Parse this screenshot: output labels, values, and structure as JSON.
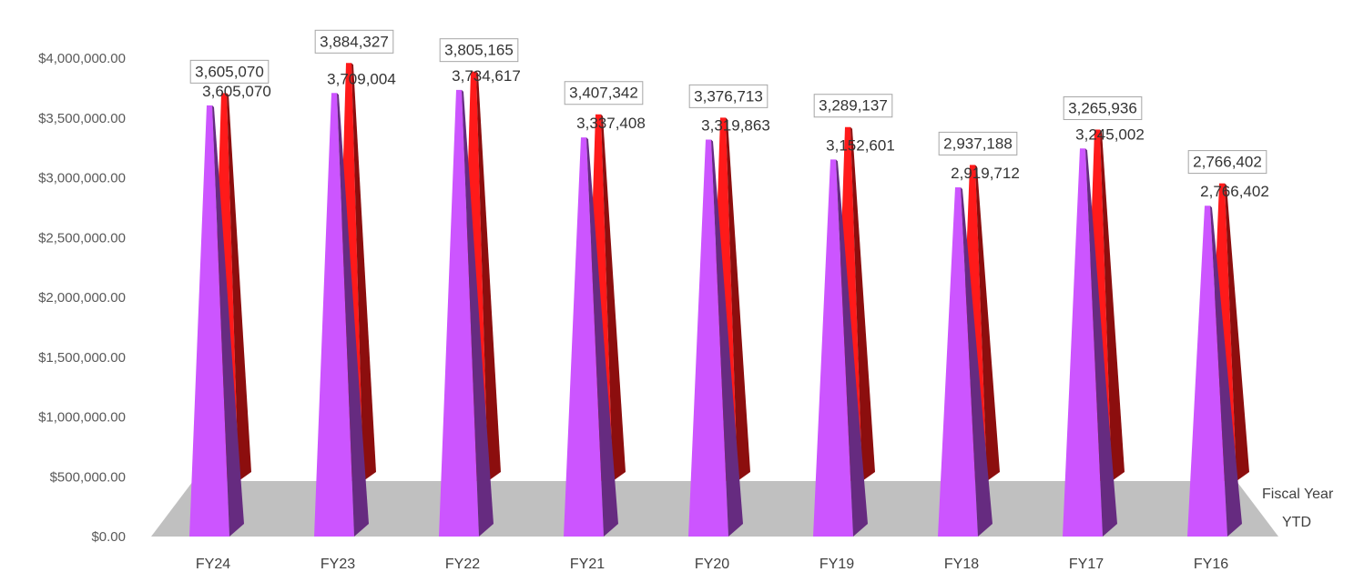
{
  "chart_data": {
    "type": "bar",
    "title": "",
    "xlabel": "",
    "ylabel": "",
    "ylim": [
      0,
      4000000
    ],
    "y_ticks": [
      "$0.00",
      "$500,000.00",
      "$1,000,000.00",
      "$1,500,000.00",
      "$2,000,000.00",
      "$2,500,000.00",
      "$3,000,000.00",
      "$3,500,000.00",
      "$4,000,000.00"
    ],
    "y_tick_values": [
      0,
      500000,
      1000000,
      1500000,
      2000000,
      2500000,
      3000000,
      3500000,
      4000000
    ],
    "categories": [
      "FY24",
      "FY23",
      "FY22",
      "FY21",
      "FY20",
      "FY19",
      "FY18",
      "FY17",
      "FY16"
    ],
    "series": [
      {
        "name": "YTD",
        "color": "#cc55ff",
        "values": [
          3605070,
          3709004,
          3734617,
          3337408,
          3319863,
          3152601,
          2919712,
          3245002,
          2766402
        ],
        "labels": [
          "3,605,070",
          "3,709,004",
          "3,734,617",
          "3,337,408",
          "3,319,863",
          "3,152,601",
          "2,919,712",
          "3,245,002",
          "2,766,402"
        ]
      },
      {
        "name": "Fiscal Year",
        "color": "#ff1a1a",
        "values": [
          3605070,
          3884327,
          3805165,
          3407342,
          3376713,
          3289137,
          2937188,
          3265936,
          2766402
        ],
        "labels": [
          "3,605,070",
          "3,884,327",
          "3,805,165",
          "3,407,342",
          "3,376,713",
          "3,289,137",
          "2,937,188",
          "3,265,936",
          "2,766,402"
        ]
      }
    ],
    "floor_color": "#c0c0c0",
    "grid": false,
    "legend": "none"
  }
}
